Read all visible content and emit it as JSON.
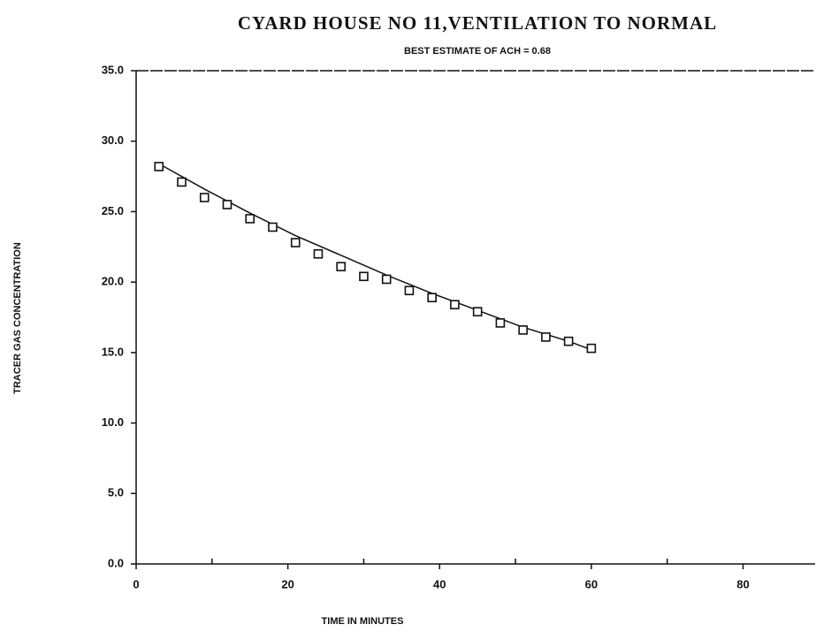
{
  "chart_data": {
    "type": "scatter",
    "title": "CYARD HOUSE NO 11,VENTILATION TO NORMAL",
    "subtitle": "BEST ESTIMATE OF ACH = 0.68",
    "x_label": "TIME IN MINUTES",
    "y_label": "TRACER GAS CONCENTRATION",
    "color": "#111111",
    "points": {
      "x": [
        3,
        6,
        9,
        12,
        15,
        18,
        21,
        24,
        27,
        30,
        33,
        36,
        39,
        42,
        45,
        48,
        51,
        54,
        57,
        60
      ],
      "values": [
        28.2,
        27.1,
        26.0,
        25.5,
        24.5,
        23.9,
        22.8,
        22.0,
        21.1,
        20.4,
        20.2,
        19.4,
        18.9,
        18.4,
        17.9,
        17.1,
        16.6,
        16.1,
        15.8,
        15.3
      ]
    },
    "fit": {
      "x": [
        3,
        9,
        15,
        21,
        27,
        33,
        39,
        45,
        51,
        57,
        60
      ],
      "values": [
        28.4,
        26.6,
        24.9,
        23.3,
        21.9,
        20.5,
        19.2,
        18.0,
        16.8,
        15.8,
        15.2
      ]
    },
    "xlim": [
      0,
      89.5
    ],
    "xticks": [
      0,
      20,
      40,
      60,
      80
    ],
    "xminorticks": [
      10,
      30,
      50,
      70
    ],
    "ylim": [
      0,
      35
    ],
    "yticks": [
      {
        "value": 0,
        "label": "0.0"
      },
      {
        "value": 5,
        "label": "5.0"
      },
      {
        "value": 10,
        "label": "10.0"
      },
      {
        "value": 15,
        "label": "15.0"
      },
      {
        "value": 20,
        "label": "20.0"
      },
      {
        "value": 25,
        "label": "25.0"
      },
      {
        "value": 30,
        "label": "30.0"
      },
      {
        "value": 35,
        "label": "35.0"
      }
    ]
  }
}
